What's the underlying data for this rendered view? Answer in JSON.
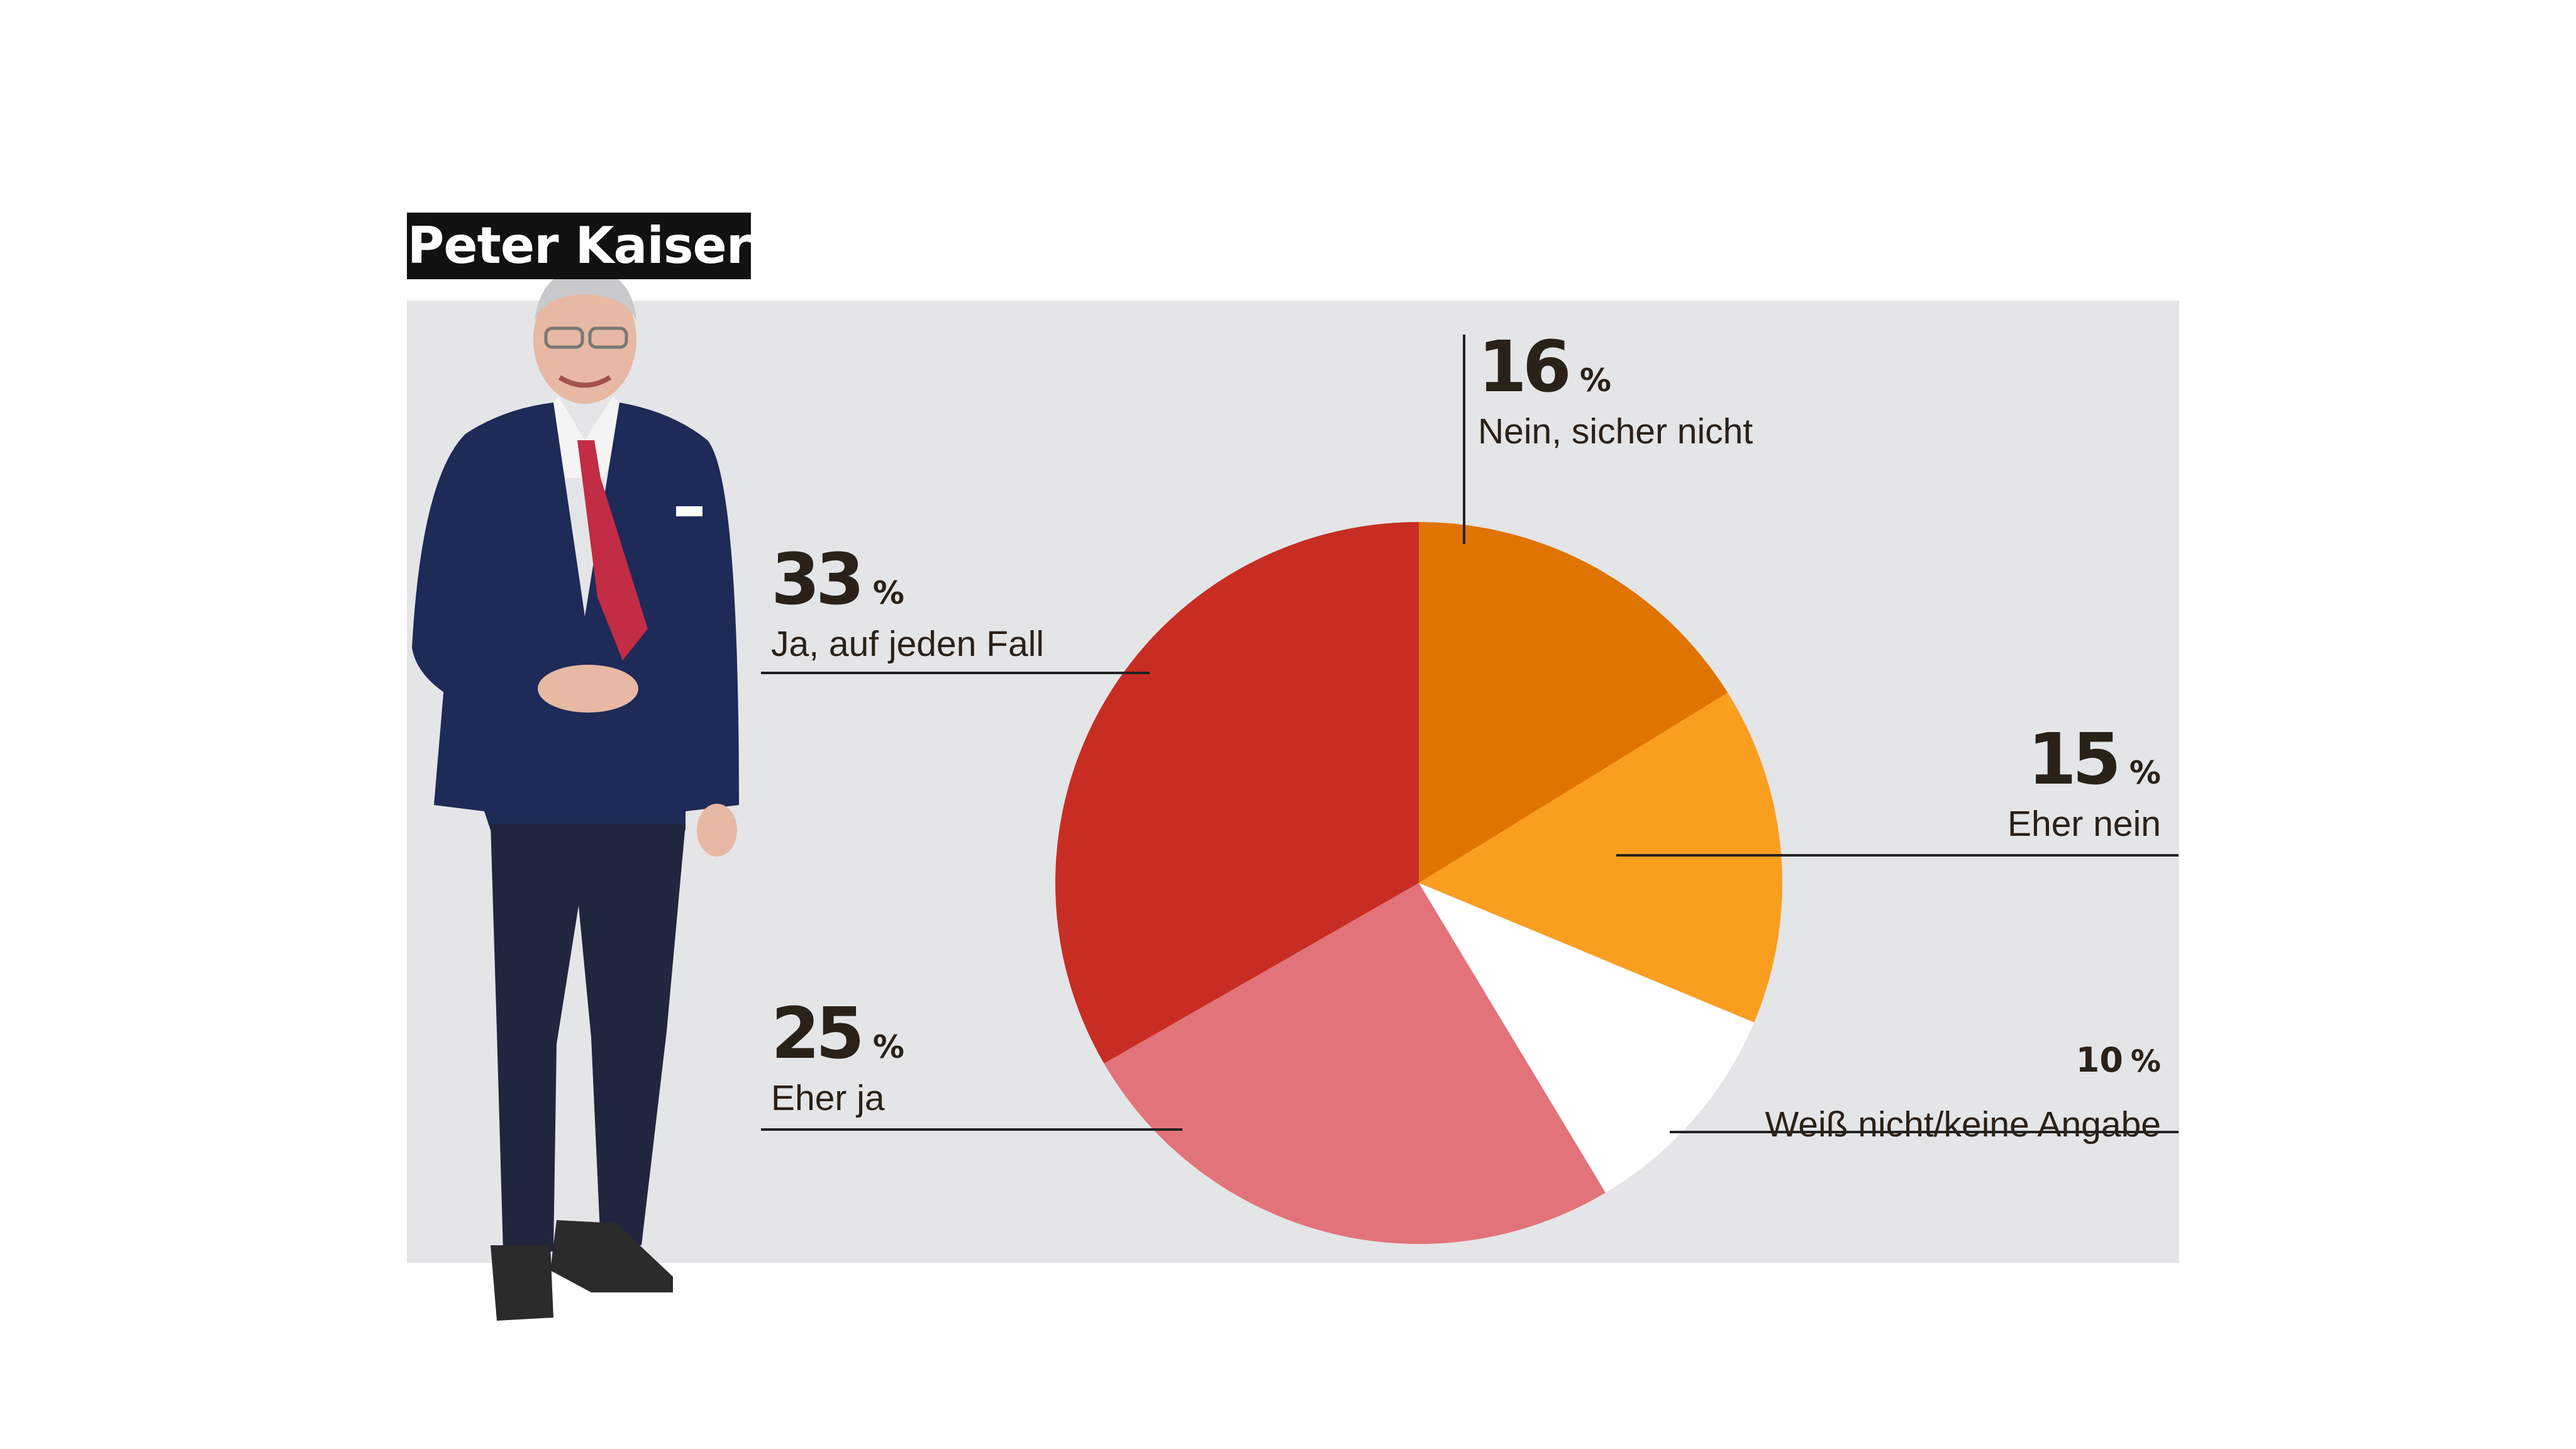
{
  "person": {
    "name": "Peter Kaiser",
    "photo_icon": "person-photo-icon"
  },
  "colors": {
    "panel_bg": "#e4e5e7",
    "leader_line": "#222222"
  },
  "chart_data": {
    "type": "pie",
    "title": "",
    "legend": "none",
    "slices": [
      {
        "label": "Nein, sicher nicht",
        "value": 16,
        "display": "16",
        "color": "#e07400"
      },
      {
        "label": "Eher nein",
        "value": 15,
        "display": "15",
        "color": "#fa9e20"
      },
      {
        "label": "Weiß nicht/keine Angabe",
        "value": 10,
        "display": "10",
        "color": "#ffffff"
      },
      {
        "label": "Eher ja",
        "value": 25,
        "display": "25",
        "color": "#e2737a"
      },
      {
        "label": "Ja, auf jeden Fall",
        "value": 33,
        "display": "33",
        "color": "#c82d23"
      }
    ],
    "unit": "%"
  }
}
